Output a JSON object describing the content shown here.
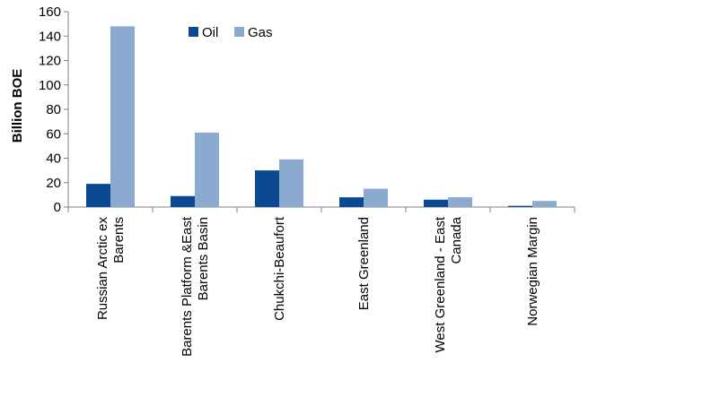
{
  "chart_data": {
    "type": "bar",
    "categories": [
      [
        "Russian Arctic ex",
        "Barents"
      ],
      [
        "Barents Platform &East",
        "Barents Basin"
      ],
      [
        "Chukchi-Beaufort"
      ],
      [
        "East Greenland"
      ],
      [
        "West Greenland  - East",
        "Canada"
      ],
      [
        "Norwegian Margin"
      ]
    ],
    "series": [
      {
        "name": "Oil",
        "color": "#0b4a92",
        "values": [
          19,
          9,
          30,
          8,
          6,
          1
        ]
      },
      {
        "name": "Gas",
        "color": "#8aaad0",
        "values": [
          148,
          61,
          39,
          15,
          8,
          5
        ]
      }
    ],
    "ylabel": "Billion BOE",
    "ylim": [
      0,
      160
    ],
    "yticks": [
      "0",
      "20",
      "40",
      "60",
      "80",
      "100",
      "120",
      "140",
      "160"
    ],
    "grid": false,
    "legend_position": "top-center"
  }
}
